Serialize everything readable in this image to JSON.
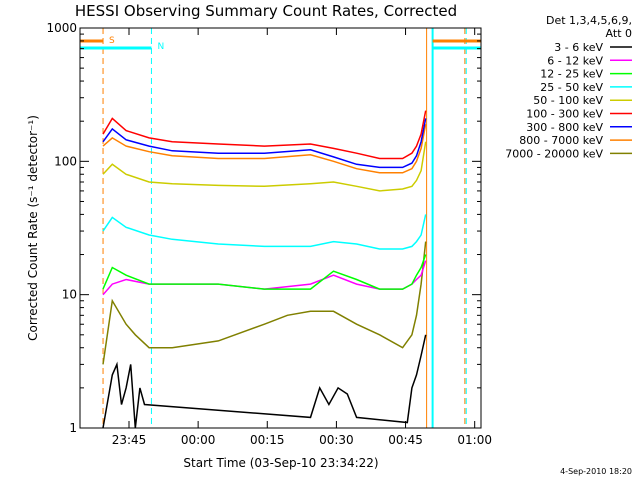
{
  "chart_data": {
    "type": "line",
    "title": "HESSI Observing Summary Count Rates, Corrected",
    "xlabel": "Start Time (03-Sep-10 23:34:22)",
    "ylabel": "Corrected Count Rate (s⁻¹ detector⁻¹)",
    "yscale": "log",
    "ylim": [
      1,
      1000
    ],
    "xlim_minutes": [
      0,
      87
    ],
    "x_ticks": [
      {
        "label": "23:45",
        "minute": 10.63
      },
      {
        "label": "00:00",
        "minute": 25.63
      },
      {
        "label": "00:15",
        "minute": 40.63
      },
      {
        "label": "00:30",
        "minute": 55.63
      },
      {
        "label": "00:45",
        "minute": 70.63
      },
      {
        "label": "01:00",
        "minute": 85.63
      }
    ],
    "y_ticks": [
      {
        "label": "1",
        "value": 1
      },
      {
        "label": "10",
        "value": 10
      },
      {
        "label": "100",
        "value": 100
      },
      {
        "label": "1000",
        "value": 1000
      }
    ],
    "legend_header": [
      "Det 1,3,4,5,6,9,",
      "Att 0"
    ],
    "legend_position": "right",
    "series": [
      {
        "name": "3 - 6 keV",
        "color": "#000000",
        "x": [
          5,
          7,
          8,
          9,
          10,
          11,
          12,
          13,
          14,
          50,
          52,
          54,
          56,
          58,
          60,
          71,
          72,
          73,
          74,
          75
        ],
        "y": [
          1,
          2.5,
          3,
          1.5,
          2,
          3,
          1,
          2,
          1.5,
          1.2,
          2,
          1.5,
          2,
          1.8,
          1.2,
          1.1,
          2,
          2.5,
          3.5,
          5
        ]
      },
      {
        "name": "6 - 12 keV",
        "color": "#ff00ff",
        "x": [
          5,
          7,
          10,
          15,
          20,
          30,
          40,
          50,
          55,
          60,
          65,
          70,
          72,
          73,
          74,
          75
        ],
        "y": [
          10,
          12,
          13,
          12,
          12,
          12,
          11,
          12,
          14,
          12,
          11,
          11,
          12,
          13,
          14,
          18
        ]
      },
      {
        "name": "12 - 25 keV",
        "color": "#00ff00",
        "x": [
          5,
          7,
          10,
          15,
          20,
          30,
          40,
          50,
          55,
          60,
          65,
          70,
          72,
          73,
          74,
          75
        ],
        "y": [
          11,
          16,
          14,
          12,
          12,
          12,
          11,
          11,
          15,
          13,
          11,
          11,
          12,
          14,
          16,
          20
        ]
      },
      {
        "name": "25 - 50 keV",
        "color": "#00ffff",
        "x": [
          5,
          7,
          10,
          15,
          20,
          30,
          40,
          50,
          55,
          60,
          65,
          70,
          72,
          73,
          74,
          75
        ],
        "y": [
          30,
          38,
          32,
          28,
          26,
          24,
          23,
          23,
          25,
          24,
          22,
          22,
          23,
          25,
          28,
          40
        ]
      },
      {
        "name": "50 - 100 keV",
        "color": "#cccc00",
        "x": [
          5,
          7,
          10,
          15,
          20,
          30,
          40,
          50,
          55,
          60,
          65,
          70,
          72,
          73,
          74,
          75
        ],
        "y": [
          80,
          95,
          80,
          70,
          68,
          66,
          65,
          68,
          70,
          65,
          60,
          62,
          65,
          72,
          85,
          140
        ]
      },
      {
        "name": "100 - 300 keV",
        "color": "#ff0000",
        "x": [
          5,
          7,
          10,
          15,
          20,
          30,
          40,
          50,
          55,
          60,
          65,
          70,
          72,
          73,
          74,
          75
        ],
        "y": [
          160,
          210,
          170,
          150,
          140,
          135,
          130,
          135,
          125,
          115,
          105,
          105,
          115,
          130,
          160,
          240
        ]
      },
      {
        "name": "300 - 800 keV",
        "color": "#0000ff",
        "x": [
          5,
          7,
          10,
          15,
          20,
          30,
          40,
          50,
          55,
          60,
          65,
          70,
          72,
          73,
          74,
          75
        ],
        "y": [
          140,
          175,
          145,
          130,
          120,
          115,
          115,
          122,
          108,
          95,
          90,
          90,
          97,
          110,
          140,
          210
        ]
      },
      {
        "name": "800 - 7000 keV",
        "color": "#ff8000",
        "x": [
          5,
          7,
          10,
          15,
          20,
          30,
          40,
          50,
          55,
          60,
          65,
          70,
          72,
          73,
          74,
          75
        ],
        "y": [
          130,
          150,
          130,
          118,
          110,
          105,
          105,
          112,
          100,
          88,
          82,
          82,
          88,
          100,
          125,
          190
        ]
      },
      {
        "name": "7000 - 20000 keV",
        "color": "#808000",
        "x": [
          5,
          7,
          10,
          12,
          15,
          20,
          30,
          40,
          45,
          50,
          55,
          60,
          65,
          70,
          72,
          73,
          74,
          75
        ],
        "y": [
          3,
          9,
          6,
          5,
          4,
          4,
          4.5,
          6,
          7,
          7.5,
          7.5,
          6,
          5,
          4,
          5,
          7,
          12,
          25
        ]
      }
    ],
    "annotations": {
      "S": {
        "text": "S",
        "color": "#ff8000"
      },
      "N": {
        "text": "N",
        "color": "#00ffff"
      }
    },
    "footer_stamp": "4-Sep-2010 18:20"
  }
}
